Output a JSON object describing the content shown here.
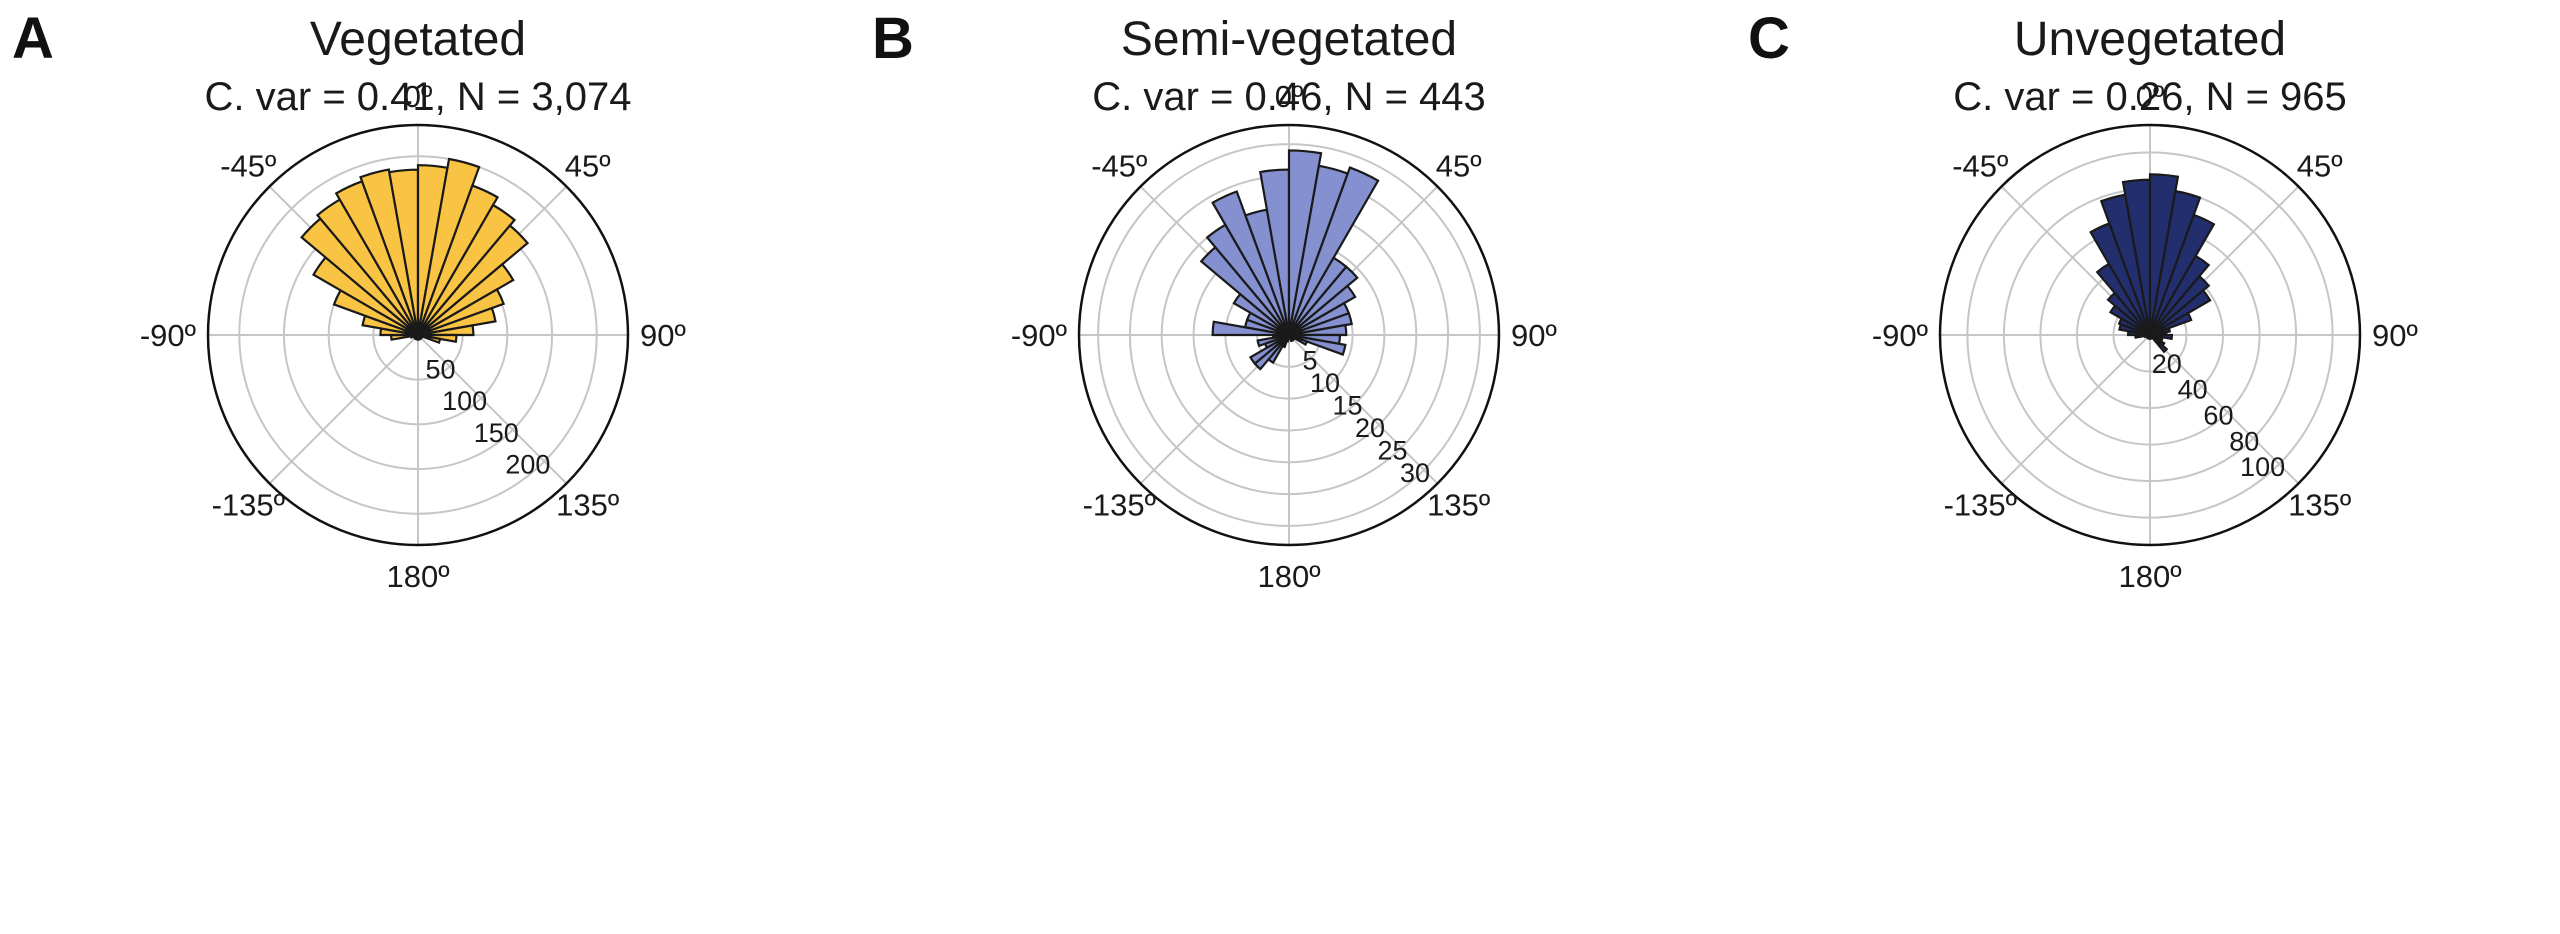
{
  "chart_data": [
    {
      "type": "polar-bar",
      "panel_label": "A",
      "title": "Vegetated",
      "subtitle": "C. var = 0.41, N = 3,074",
      "color": "#f9c443",
      "theta_zero": "top",
      "theta_direction": "clockwise",
      "angle_ticks": [
        "0º",
        "45º",
        "90º",
        "135º",
        "180º",
        "-135º",
        "-90º",
        "-45º"
      ],
      "r_max": 235,
      "r_ticks": [
        50,
        100,
        150,
        200
      ],
      "bin_width_deg": 10,
      "bin_centers_deg": [
        -175,
        -165,
        -155,
        -145,
        -135,
        -125,
        -115,
        -105,
        -95,
        -85,
        -75,
        -65,
        -55,
        -45,
        -35,
        -25,
        -15,
        -5,
        5,
        15,
        25,
        35,
        45,
        55,
        65,
        75,
        85,
        95,
        105,
        115,
        125,
        135,
        145,
        155,
        165,
        175
      ],
      "values": [
        5,
        5,
        5,
        5,
        5,
        5,
        5,
        8,
        30,
        42,
        63,
        100,
        135,
        170,
        175,
        183,
        188,
        185,
        190,
        200,
        178,
        168,
        160,
        123,
        102,
        88,
        62,
        43,
        25,
        5,
        5,
        5,
        5,
        5,
        5,
        5
      ]
    },
    {
      "type": "polar-bar",
      "panel_label": "B",
      "title": "Semi-vegetated",
      "subtitle": "C. var = 0.46, N = 443",
      "color": "#8490cf",
      "theta_zero": "top",
      "theta_direction": "clockwise",
      "angle_ticks": [
        "0º",
        "45º",
        "90º",
        "135º",
        "180º",
        "-135º",
        "-90º",
        "-45º"
      ],
      "r_max": 33,
      "r_ticks": [
        5,
        10,
        15,
        20,
        25,
        30
      ],
      "bin_width_deg": 10,
      "bin_centers_deg": [
        -175,
        -165,
        -155,
        -145,
        -135,
        -125,
        -115,
        -105,
        -95,
        -85,
        -75,
        -65,
        -55,
        -45,
        -35,
        -25,
        -15,
        -5,
        5,
        15,
        25,
        35,
        45,
        55,
        65,
        75,
        85,
        95,
        105,
        115,
        125,
        135,
        145,
        155,
        165,
        175
      ],
      "values": [
        0.5,
        1,
        2,
        5,
        7,
        7,
        4,
        5,
        2.5,
        12,
        7,
        7,
        10,
        18,
        20,
        24,
        20,
        26,
        29,
        27,
        28,
        14,
        14,
        12,
        10,
        10,
        9,
        8,
        9,
        3,
        1,
        1,
        1,
        1,
        0.5,
        0.5
      ]
    },
    {
      "type": "polar-bar",
      "panel_label": "C",
      "title": "Unvegetated",
      "subtitle": "C. var = 0.26, N = 965",
      "color": "#232e6e",
      "theta_zero": "top",
      "theta_direction": "clockwise",
      "angle_ticks": [
        "0º",
        "45º",
        "90º",
        "135º",
        "180º",
        "-135º",
        "-90º",
        "-45º"
      ],
      "r_max": 115,
      "r_ticks": [
        20,
        40,
        60,
        80,
        100
      ],
      "bin_width_deg": 10,
      "bin_centers_deg": [
        -175,
        -165,
        -155,
        -145,
        -135,
        -125,
        -115,
        -105,
        -95,
        -85,
        -75,
        -65,
        -55,
        -45,
        -35,
        -25,
        -15,
        -5,
        5,
        15,
        25,
        35,
        45,
        55,
        65,
        75,
        85,
        95,
        105,
        115,
        125,
        135,
        145,
        155,
        165,
        175
      ],
      "values": [
        2,
        2,
        2,
        2,
        2,
        2,
        2,
        3,
        8,
        12,
        17,
        18,
        25,
        30,
        45,
        65,
        78,
        85,
        88,
        80,
        70,
        50,
        42,
        38,
        24,
        11,
        9,
        12,
        7,
        7,
        9,
        12,
        2,
        2,
        2,
        2
      ]
    }
  ],
  "panels": [
    {
      "letter": "A",
      "title": "Vegetated",
      "subtitle": "C. var = 0.41, N = 3,074"
    },
    {
      "letter": "B",
      "title": "Semi-vegetated",
      "subtitle": "C. var = 0.46, N = 443"
    },
    {
      "letter": "C",
      "title": "Unvegetated",
      "subtitle": "C. var = 0.26, N = 965"
    }
  ]
}
